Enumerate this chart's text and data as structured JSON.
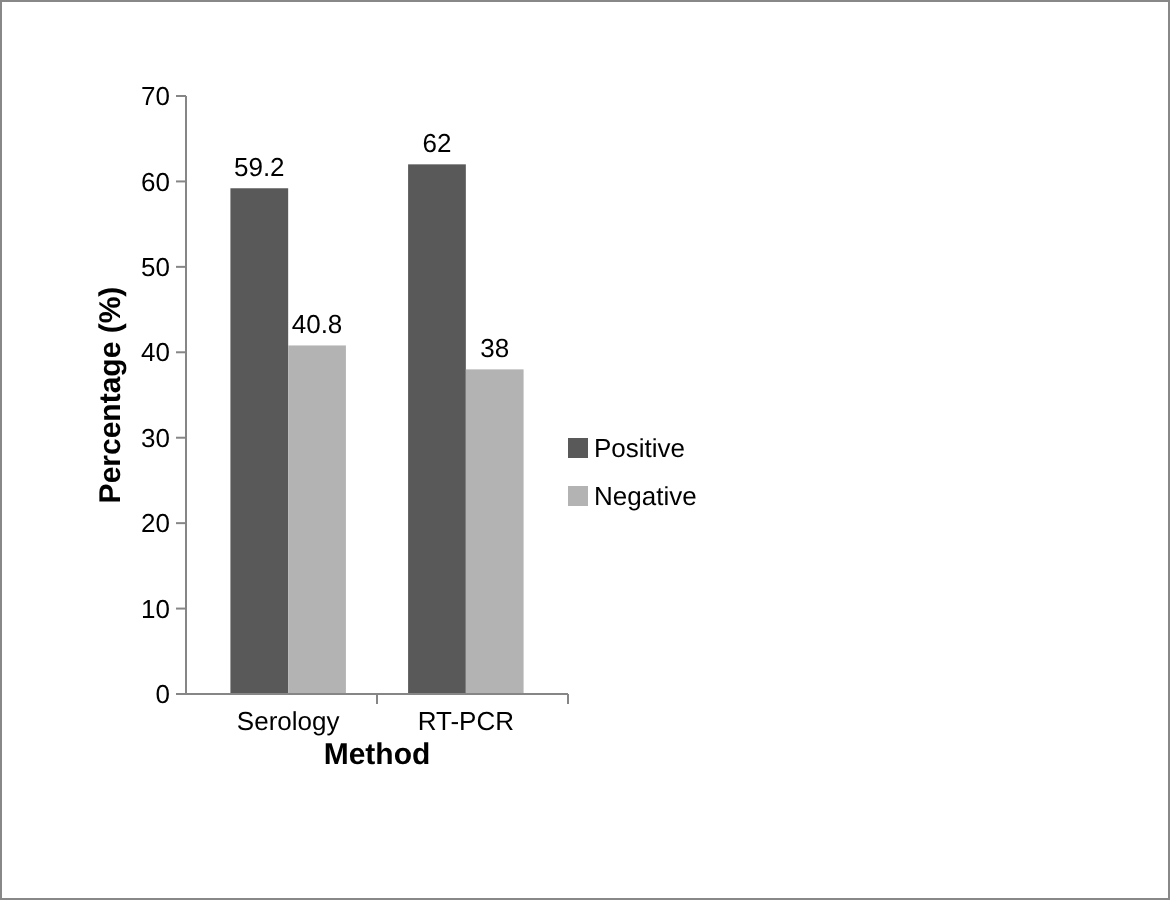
{
  "chart_data": {
    "type": "bar",
    "xlabel": "Method",
    "ylabel": "Percentage (%)",
    "categories": [
      "Serology",
      "RT-PCR"
    ],
    "series": [
      {
        "name": "Positive",
        "color": "#595959",
        "values": [
          59.2,
          62
        ]
      },
      {
        "name": "Negative",
        "color": "#b3b3b3",
        "values": [
          40.8,
          38
        ]
      }
    ],
    "ylim": [
      0,
      70
    ],
    "yticks": [
      0,
      10,
      20,
      30,
      40,
      50,
      60,
      70
    ],
    "data_labels": true,
    "legend": "right",
    "grid": false
  }
}
